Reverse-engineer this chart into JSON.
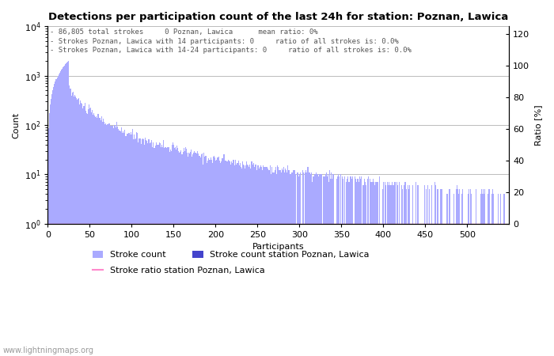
{
  "title": "Detections per participation count of the last 24h for station: Poznan, Lawica",
  "xlabel": "Participants",
  "ylabel_left": "Count",
  "ylabel_right": "Ratio [%]",
  "annotation_lines": [
    "86,805 total strokes     0 Poznan, Lawica      mean ratio: 0%",
    "Strokes Poznan, Lawica with 14 participants: 0     ratio of all strokes is: 0.0%",
    "Strokes Poznan, Lawica with 14-24 participants: 0     ratio of all strokes is: 0.0%"
  ],
  "watermark": "www.lightningmaps.org",
  "bar_color_global": "#aaaaff",
  "bar_color_station": "#4444cc",
  "ratio_line_color": "#ff88cc",
  "background_color": "#ffffff",
  "grid_color": "#bbbbbb",
  "xlim": [
    0,
    550
  ],
  "ylim_log": [
    1,
    10000
  ],
  "ylim_right": [
    0,
    125
  ],
  "yticks_right": [
    0,
    20,
    40,
    60,
    80,
    100,
    120
  ],
  "xticks": [
    0,
    50,
    100,
    150,
    200,
    250,
    300,
    350,
    400,
    450,
    500
  ],
  "figsize": [
    7.0,
    4.5
  ],
  "dpi": 100
}
